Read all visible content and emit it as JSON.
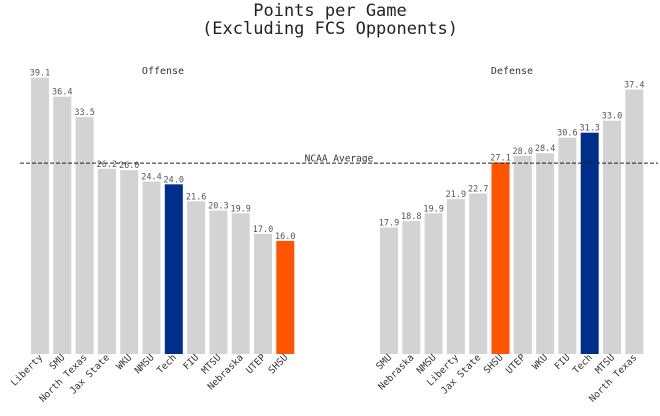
{
  "title_line1": "Points per Game",
  "title_line2": "(Excluding FCS Opponents)",
  "reference_line_label": "NCAA Average",
  "colors": {
    "default": "#d3d3d3",
    "tech": "#002f8b",
    "shsu": "#ff5500",
    "reference_line": "#222222"
  },
  "chart_data": [
    {
      "type": "bar",
      "title": "Offense",
      "categories": [
        "Liberty",
        "SMU",
        "North Texas",
        "Jax State",
        "WKU",
        "NMSU",
        "Tech",
        "FIU",
        "MTSU",
        "Nebraska",
        "UTEP",
        "SHSU"
      ],
      "values": [
        39.1,
        36.4,
        33.5,
        26.2,
        26.0,
        24.4,
        24.0,
        21.6,
        20.3,
        19.9,
        17.0,
        16.0
      ],
      "value_labels": [
        "39.1",
        "36.4",
        "33.5",
        "26.2",
        "26.0",
        "24.4",
        "24.0",
        "21.6",
        "20.3",
        "19.9",
        "17.0",
        "16.0"
      ],
      "highlight": {
        "Tech": "tech",
        "SHSU": "shsu"
      },
      "reference_line": 27.0,
      "ylim": [
        0,
        40
      ],
      "grid": false
    },
    {
      "type": "bar",
      "title": "Defense",
      "categories": [
        "SMU",
        "Nebraska",
        "NMSU",
        "Liberty",
        "Jax State",
        "SHSU",
        "UTEP",
        "WKU",
        "FIU",
        "Tech",
        "MTSU",
        "North Texas"
      ],
      "values": [
        17.9,
        18.8,
        19.9,
        21.9,
        22.7,
        27.1,
        28.0,
        28.4,
        30.6,
        31.3,
        33.0,
        37.4
      ],
      "value_labels": [
        "17.9",
        "18.8",
        "19.9",
        "21.9",
        "22.7",
        "27.1",
        "28.0",
        "28.4",
        "30.6",
        "31.3",
        "33.0",
        "37.4"
      ],
      "highlight": {
        "Tech": "tech",
        "SHSU": "shsu"
      },
      "reference_line": 27.0,
      "ylim": [
        0,
        40
      ],
      "grid": false
    }
  ]
}
